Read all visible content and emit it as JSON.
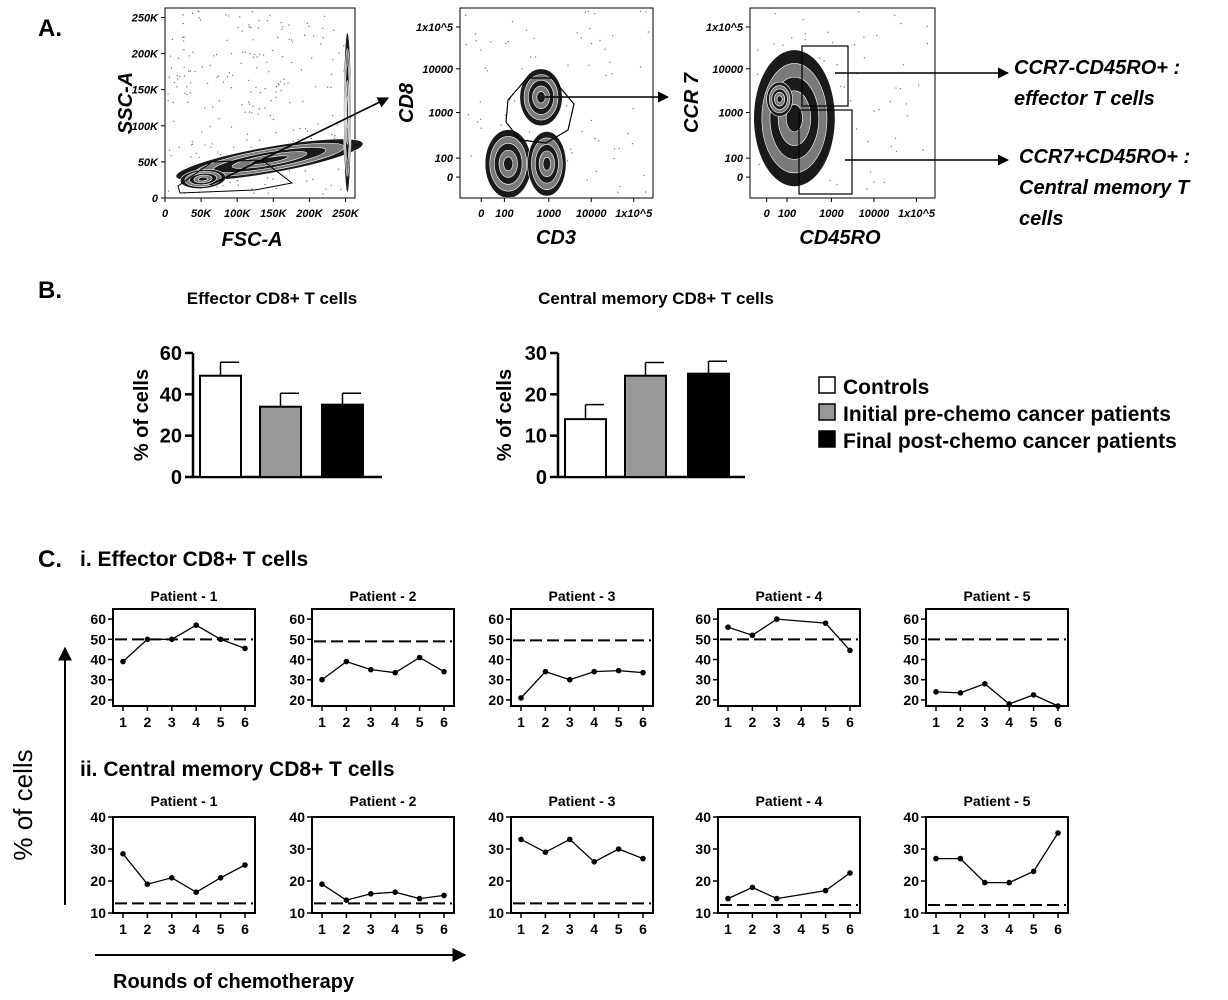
{
  "panel_labels": {
    "a": "A.",
    "b": "B.",
    "c": "C."
  },
  "legend": {
    "controls": "Controls",
    "initial": "Initial pre-chemo cancer patients",
    "final": "Final post-chemo cancer patients"
  },
  "annotations": {
    "effector_line1": "CCR7-CD45RO+ :",
    "effector_line2": "effector T cells",
    "central_line1": "CCR7+CD45RO+ :",
    "central_line2": "Central memory T",
    "central_line3": "cells"
  },
  "panel_c": {
    "section_i": "i. Effector CD8+ T cells",
    "section_ii": "ii. Central memory CD8+ T cells",
    "ylabel": "% of cells",
    "xlabel": "Rounds of chemotherapy"
  },
  "colors": {
    "controls": "#ffffff",
    "initial": "#999999",
    "final": "#000000",
    "ink": "#000000"
  },
  "chart_data": [
    {
      "type": "scatter",
      "id": "flow-fsc-ssc",
      "xlabel": "FSC-A",
      "ylabel": "SSC-A",
      "xticks": [
        "0",
        "50K",
        "100K",
        "150K",
        "200K",
        "250K"
      ],
      "yticks": [
        "0",
        "50K",
        "100K",
        "150K",
        "200K",
        "250K"
      ],
      "xlim": [
        0,
        262144
      ],
      "ylim": [
        0,
        262144
      ]
    },
    {
      "type": "scatter",
      "id": "flow-cd3-cd8",
      "xlabel": "CD3",
      "ylabel": "CD8",
      "xticks": [
        "0",
        "100",
        "1000",
        "10000",
        "1x10^5"
      ],
      "yticks": [
        "0",
        "100",
        "1000",
        "10000",
        "1x10^5"
      ]
    },
    {
      "type": "scatter",
      "id": "flow-cd45ro-ccr7",
      "xlabel": "CD45RO",
      "ylabel": "CCR 7",
      "xticks": [
        "0",
        "100",
        "1000",
        "10000",
        "1x10^5"
      ],
      "yticks": [
        "0",
        "100",
        "1000",
        "10000",
        "1x10^5"
      ]
    },
    {
      "type": "bar",
      "id": "bar-effector",
      "title": "Effector CD8+ T cells",
      "ylabel": "% of cells",
      "categories": [
        "Controls",
        "Initial pre-chemo cancer patients",
        "Final post-chemo cancer patients"
      ],
      "values": [
        49,
        34,
        35
      ],
      "errors": [
        6.5,
        6.5,
        5.5
      ],
      "ylim": [
        0,
        60
      ],
      "yticks": [
        0,
        20,
        40,
        60
      ]
    },
    {
      "type": "bar",
      "id": "bar-central",
      "title": "Central memory CD8+ T cells",
      "ylabel": "% of cells",
      "categories": [
        "Controls",
        "Initial pre-chemo cancer patients",
        "Final post-chemo cancer patients"
      ],
      "values": [
        14,
        24.5,
        25
      ],
      "errors": [
        3.5,
        3.2,
        3.0
      ],
      "ylim": [
        0,
        30
      ],
      "yticks": [
        0,
        10,
        20,
        30
      ]
    },
    {
      "type": "line",
      "id": "eff-p1",
      "title": "Patient - 1",
      "x": [
        1,
        2,
        3,
        4,
        5,
        6
      ],
      "y": [
        39,
        50,
        50,
        57,
        50,
        45.5
      ],
      "reference": 50,
      "ylim": [
        17,
        65
      ],
      "yticks": [
        20,
        30,
        40,
        50,
        60
      ]
    },
    {
      "type": "line",
      "id": "eff-p2",
      "title": "Patient - 2",
      "x": [
        1,
        2,
        3,
        4,
        5,
        6
      ],
      "y": [
        30,
        39,
        35,
        33.5,
        41,
        34
      ],
      "reference": 49,
      "ylim": [
        17,
        65
      ],
      "yticks": [
        20,
        30,
        40,
        50,
        60
      ]
    },
    {
      "type": "line",
      "id": "eff-p3",
      "title": "Patient - 3",
      "x": [
        1,
        2,
        3,
        4,
        5,
        6
      ],
      "y": [
        21,
        34,
        30,
        34,
        34.5,
        33.5
      ],
      "reference": 49.5,
      "ylim": [
        17,
        65
      ],
      "yticks": [
        20,
        30,
        40,
        50,
        60
      ]
    },
    {
      "type": "line",
      "id": "eff-p4",
      "title": "Patient - 4",
      "x": [
        1,
        2,
        3,
        4,
        5,
        6
      ],
      "y": [
        56,
        52,
        60,
        null,
        58,
        44.5
      ],
      "reference": 50,
      "ylim": [
        17,
        65
      ],
      "yticks": [
        20,
        30,
        40,
        50,
        60
      ]
    },
    {
      "type": "line",
      "id": "eff-p5",
      "title": "Patient - 5",
      "x": [
        1,
        2,
        3,
        4,
        5,
        6
      ],
      "y": [
        24,
        23.5,
        28,
        18,
        22.5,
        17
      ],
      "reference": 50,
      "ylim": [
        17,
        65
      ],
      "yticks": [
        20,
        30,
        40,
        50,
        60
      ]
    },
    {
      "type": "line",
      "id": "cm-p1",
      "title": "Patient - 1",
      "x": [
        1,
        2,
        3,
        4,
        5,
        6
      ],
      "y": [
        28.5,
        19,
        21,
        16.5,
        21,
        25
      ],
      "reference": 13,
      "ylim": [
        10,
        40
      ],
      "yticks": [
        10,
        20,
        30,
        40
      ]
    },
    {
      "type": "line",
      "id": "cm-p2",
      "title": "Patient - 2",
      "x": [
        1,
        2,
        3,
        4,
        5,
        6
      ],
      "y": [
        19,
        14,
        16,
        16.5,
        14.5,
        15.5
      ],
      "reference": 13,
      "ylim": [
        10,
        40
      ],
      "yticks": [
        10,
        20,
        30,
        40
      ]
    },
    {
      "type": "line",
      "id": "cm-p3",
      "title": "Patient - 3",
      "x": [
        1,
        2,
        3,
        4,
        5,
        6
      ],
      "y": [
        33,
        29,
        33,
        26,
        30,
        27
      ],
      "reference": 13,
      "ylim": [
        10,
        40
      ],
      "yticks": [
        10,
        20,
        30,
        40
      ]
    },
    {
      "type": "line",
      "id": "cm-p4",
      "title": "Patient - 4",
      "x": [
        1,
        2,
        3,
        4,
        5,
        6
      ],
      "y": [
        14.5,
        18,
        14.5,
        null,
        17,
        22.5
      ],
      "reference": 12.5,
      "ylim": [
        10,
        40
      ],
      "yticks": [
        10,
        20,
        30,
        40
      ]
    },
    {
      "type": "line",
      "id": "cm-p5",
      "title": "Patient - 5",
      "x": [
        1,
        2,
        3,
        4,
        5,
        6
      ],
      "y": [
        27,
        27,
        19.5,
        19.5,
        23,
        35
      ],
      "reference": 12.5,
      "ylim": [
        10,
        40
      ],
      "yticks": [
        10,
        20,
        30,
        40
      ]
    }
  ]
}
